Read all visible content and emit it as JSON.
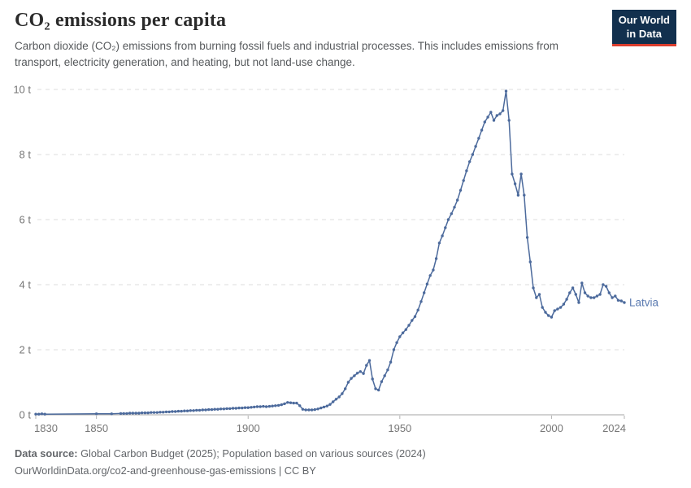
{
  "header": {
    "title": "CO₂ emissions per capita",
    "subtitle": "Carbon dioxide (CO₂) emissions from burning fossil fuels and industrial processes. This includes emissions from transport, electricity generation, and heating, but not land-use change.",
    "logo": {
      "line1": "Our World",
      "line2": "in Data"
    }
  },
  "footer": {
    "source_label": "Data source:",
    "source_text": " Global Carbon Budget (2025); Population based on various sources (2024)",
    "url_line": "OurWorldinData.org/co2-and-greenhouse-gas-emissions | CC BY"
  },
  "colors": {
    "line": "#4c6a9c",
    "series_label": "#5b7bb1",
    "grid": "#dcdcdc",
    "axis_baseline": "#a6a6a6",
    "tick_mark": "#b3b3b3",
    "tick_label": "#767676",
    "logo_bg": "#12304e",
    "logo_accent": "#dc3e2e"
  },
  "chart_data": {
    "type": "line",
    "title": "CO₂ emissions per capita",
    "xlabel": "",
    "ylabel": "",
    "xlim": [
      1830,
      2024
    ],
    "ylim": [
      0,
      10
    ],
    "x_ticks": [
      1830,
      1850,
      1900,
      1950,
      2000,
      2024
    ],
    "y_ticks": [
      0,
      2,
      4,
      6,
      8,
      10
    ],
    "y_tick_suffix": " t",
    "grid": "horizontal-dashed",
    "legend_position": "end-of-line-label",
    "series": [
      {
        "name": "Latvia",
        "points": [
          [
            1830,
            0.02
          ],
          [
            1831,
            0.02
          ],
          [
            1832,
            0.03
          ],
          [
            1833,
            0.02
          ],
          [
            1850,
            0.03
          ],
          [
            1855,
            0.03
          ],
          [
            1858,
            0.04
          ],
          [
            1859,
            0.04
          ],
          [
            1860,
            0.04
          ],
          [
            1861,
            0.05
          ],
          [
            1862,
            0.05
          ],
          [
            1863,
            0.05
          ],
          [
            1864,
            0.05
          ],
          [
            1865,
            0.06
          ],
          [
            1866,
            0.06
          ],
          [
            1867,
            0.06
          ],
          [
            1868,
            0.07
          ],
          [
            1869,
            0.07
          ],
          [
            1870,
            0.07
          ],
          [
            1871,
            0.08
          ],
          [
            1872,
            0.08
          ],
          [
            1873,
            0.09
          ],
          [
            1874,
            0.09
          ],
          [
            1875,
            0.1
          ],
          [
            1876,
            0.1
          ],
          [
            1877,
            0.11
          ],
          [
            1878,
            0.11
          ],
          [
            1879,
            0.12
          ],
          [
            1880,
            0.12
          ],
          [
            1881,
            0.13
          ],
          [
            1882,
            0.13
          ],
          [
            1883,
            0.14
          ],
          [
            1884,
            0.14
          ],
          [
            1885,
            0.15
          ],
          [
            1886,
            0.15
          ],
          [
            1887,
            0.16
          ],
          [
            1888,
            0.16
          ],
          [
            1889,
            0.17
          ],
          [
            1890,
            0.17
          ],
          [
            1891,
            0.18
          ],
          [
            1892,
            0.18
          ],
          [
            1893,
            0.19
          ],
          [
            1894,
            0.19
          ],
          [
            1895,
            0.2
          ],
          [
            1896,
            0.2
          ],
          [
            1897,
            0.21
          ],
          [
            1898,
            0.21
          ],
          [
            1899,
            0.22
          ],
          [
            1900,
            0.22
          ],
          [
            1901,
            0.23
          ],
          [
            1902,
            0.24
          ],
          [
            1903,
            0.25
          ],
          [
            1904,
            0.25
          ],
          [
            1905,
            0.26
          ],
          [
            1906,
            0.25
          ],
          [
            1907,
            0.26
          ],
          [
            1908,
            0.27
          ],
          [
            1909,
            0.28
          ],
          [
            1910,
            0.29
          ],
          [
            1911,
            0.31
          ],
          [
            1912,
            0.34
          ],
          [
            1913,
            0.38
          ],
          [
            1914,
            0.37
          ],
          [
            1915,
            0.36
          ],
          [
            1916,
            0.36
          ],
          [
            1917,
            0.28
          ],
          [
            1918,
            0.17
          ],
          [
            1919,
            0.15
          ],
          [
            1920,
            0.15
          ],
          [
            1921,
            0.15
          ],
          [
            1922,
            0.16
          ],
          [
            1923,
            0.18
          ],
          [
            1924,
            0.21
          ],
          [
            1925,
            0.24
          ],
          [
            1926,
            0.27
          ],
          [
            1927,
            0.32
          ],
          [
            1928,
            0.4
          ],
          [
            1929,
            0.48
          ],
          [
            1930,
            0.55
          ],
          [
            1931,
            0.65
          ],
          [
            1932,
            0.8
          ],
          [
            1933,
            1.0
          ],
          [
            1934,
            1.12
          ],
          [
            1935,
            1.2
          ],
          [
            1936,
            1.28
          ],
          [
            1937,
            1.33
          ],
          [
            1938,
            1.27
          ],
          [
            1939,
            1.52
          ],
          [
            1940,
            1.67
          ],
          [
            1941,
            1.1
          ],
          [
            1942,
            0.8
          ],
          [
            1943,
            0.76
          ],
          [
            1944,
            1.02
          ],
          [
            1945,
            1.2
          ],
          [
            1946,
            1.38
          ],
          [
            1947,
            1.62
          ],
          [
            1948,
            2.0
          ],
          [
            1949,
            2.22
          ],
          [
            1950,
            2.4
          ],
          [
            1951,
            2.52
          ],
          [
            1952,
            2.62
          ],
          [
            1953,
            2.75
          ],
          [
            1954,
            2.9
          ],
          [
            1955,
            3.02
          ],
          [
            1956,
            3.22
          ],
          [
            1957,
            3.48
          ],
          [
            1958,
            3.75
          ],
          [
            1959,
            4.02
          ],
          [
            1960,
            4.28
          ],
          [
            1961,
            4.45
          ],
          [
            1962,
            4.8
          ],
          [
            1963,
            5.28
          ],
          [
            1964,
            5.5
          ],
          [
            1965,
            5.75
          ],
          [
            1966,
            6.0
          ],
          [
            1967,
            6.18
          ],
          [
            1968,
            6.38
          ],
          [
            1969,
            6.6
          ],
          [
            1970,
            6.9
          ],
          [
            1971,
            7.2
          ],
          [
            1972,
            7.5
          ],
          [
            1973,
            7.78
          ],
          [
            1974,
            8.0
          ],
          [
            1975,
            8.25
          ],
          [
            1976,
            8.5
          ],
          [
            1977,
            8.75
          ],
          [
            1978,
            9.0
          ],
          [
            1979,
            9.15
          ],
          [
            1980,
            9.3
          ],
          [
            1981,
            9.05
          ],
          [
            1982,
            9.2
          ],
          [
            1983,
            9.25
          ],
          [
            1984,
            9.35
          ],
          [
            1985,
            9.95
          ],
          [
            1986,
            9.05
          ],
          [
            1987,
            7.4
          ],
          [
            1988,
            7.1
          ],
          [
            1989,
            6.75
          ],
          [
            1990,
            7.4
          ],
          [
            1991,
            6.75
          ],
          [
            1992,
            5.45
          ],
          [
            1993,
            4.7
          ],
          [
            1994,
            3.9
          ],
          [
            1995,
            3.6
          ],
          [
            1996,
            3.7
          ],
          [
            1997,
            3.3
          ],
          [
            1998,
            3.15
          ],
          [
            1999,
            3.05
          ],
          [
            2000,
            3.0
          ],
          [
            2001,
            3.2
          ],
          [
            2002,
            3.25
          ],
          [
            2003,
            3.3
          ],
          [
            2004,
            3.4
          ],
          [
            2005,
            3.55
          ],
          [
            2006,
            3.75
          ],
          [
            2007,
            3.9
          ],
          [
            2008,
            3.7
          ],
          [
            2009,
            3.45
          ],
          [
            2010,
            4.05
          ],
          [
            2011,
            3.75
          ],
          [
            2012,
            3.65
          ],
          [
            2013,
            3.6
          ],
          [
            2014,
            3.6
          ],
          [
            2015,
            3.65
          ],
          [
            2016,
            3.7
          ],
          [
            2017,
            4.0
          ],
          [
            2018,
            3.95
          ],
          [
            2019,
            3.75
          ],
          [
            2020,
            3.6
          ],
          [
            2021,
            3.65
          ],
          [
            2022,
            3.52
          ],
          [
            2023,
            3.5
          ],
          [
            2024,
            3.45
          ]
        ]
      }
    ]
  }
}
